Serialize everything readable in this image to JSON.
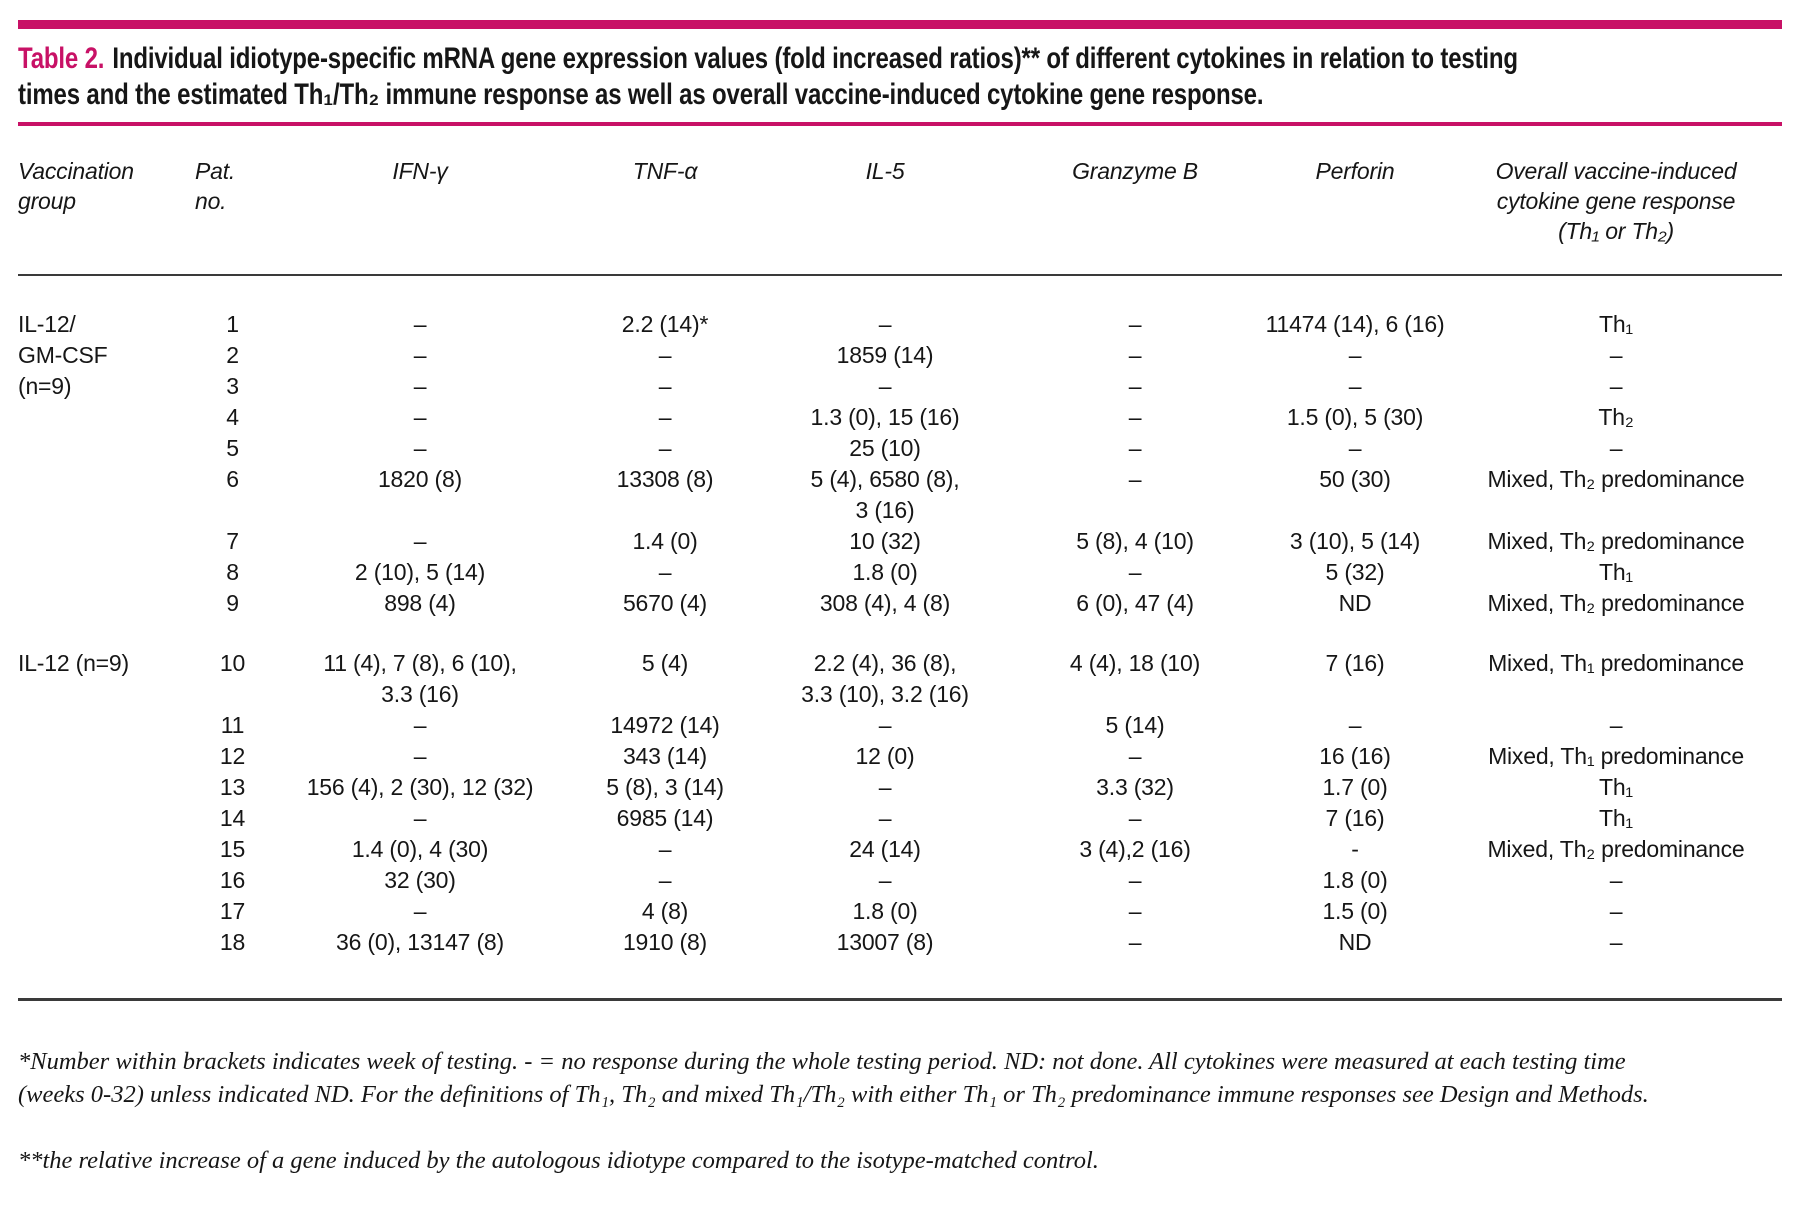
{
  "accent_color": "#c81166",
  "rule_color": "#3a3a3a",
  "caption": {
    "label": "Table 2.",
    "text": "Individual idiotype-specific mRNA gene expression values (fold increased ratios)** of different cytokines in relation to testing\ntimes and the estimated Th₁/Th₂ immune response as well as overall vaccine-induced cytokine gene response."
  },
  "table": {
    "columns": [
      {
        "key": "group",
        "label": "Vaccination\ngroup"
      },
      {
        "key": "pat",
        "label": "Pat. no."
      },
      {
        "key": "ifng",
        "label": "IFN-γ"
      },
      {
        "key": "tnfa",
        "label": "TNF-α"
      },
      {
        "key": "il5",
        "label": "IL-5"
      },
      {
        "key": "granzyme",
        "label": "Granzyme B"
      },
      {
        "key": "perforin",
        "label": "Perforin"
      },
      {
        "key": "overall",
        "label": "Overall vaccine-induced\ncytokine gene response\n(Th₁ or Th₂)"
      }
    ],
    "groups": [
      {
        "label": "IL-12/\nGM-CSF\n(n=9)",
        "rows": [
          {
            "pat": "1",
            "ifng": "–",
            "tnfa": "2.2 (14)*",
            "il5": "–",
            "granzyme": "–",
            "perforin": "11474 (14), 6 (16)",
            "overall": "Th₁"
          },
          {
            "pat": "2",
            "ifng": "–",
            "tnfa": "–",
            "il5": "1859 (14)",
            "granzyme": "–",
            "perforin": "–",
            "overall": "–"
          },
          {
            "pat": "3",
            "ifng": "–",
            "tnfa": "–",
            "il5": "–",
            "granzyme": "–",
            "perforin": "–",
            "overall": "–"
          },
          {
            "pat": "4",
            "ifng": "–",
            "tnfa": "–",
            "il5": "1.3 (0), 15 (16)",
            "granzyme": "–",
            "perforin": "1.5 (0), 5 (30)",
            "overall": "Th₂"
          },
          {
            "pat": "5",
            "ifng": "–",
            "tnfa": "–",
            "il5": "25 (10)",
            "granzyme": "–",
            "perforin": "–",
            "overall": "–"
          },
          {
            "pat": "6",
            "ifng": "1820 (8)",
            "tnfa": "13308 (8)",
            "il5": "5 (4), 6580 (8),\n3 (16)",
            "granzyme": "–",
            "perforin": "50 (30)",
            "overall": "Mixed, Th₂ predominance"
          },
          {
            "pat": "7",
            "ifng": "–",
            "tnfa": "1.4 (0)",
            "il5": "10 (32)",
            "granzyme": "5 (8), 4 (10)",
            "perforin": "3 (10), 5 (14)",
            "overall": "Mixed, Th₂ predominance"
          },
          {
            "pat": "8",
            "ifng": "2 (10), 5 (14)",
            "tnfa": "–",
            "il5": "1.8 (0)",
            "granzyme": "–",
            "perforin": "5 (32)",
            "overall": "Th₁"
          },
          {
            "pat": "9",
            "ifng": "898 (4)",
            "tnfa": "5670 (4)",
            "il5": "308 (4), 4 (8)",
            "granzyme": "6 (0), 47 (4)",
            "perforin": "ND",
            "overall": "Mixed, Th₂ predominance"
          }
        ]
      },
      {
        "label": "IL-12 (n=9)",
        "rows": [
          {
            "pat": "10",
            "ifng": "11 (4), 7 (8), 6 (10),\n3.3 (16)",
            "tnfa": "5 (4)",
            "il5": "2.2 (4), 36 (8),\n3.3 (10), 3.2 (16)",
            "granzyme": "4 (4), 18 (10)",
            "perforin": "7 (16)",
            "overall": "Mixed, Th₁ predominance"
          },
          {
            "pat": "11",
            "ifng": "–",
            "tnfa": "14972 (14)",
            "il5": "–",
            "granzyme": "5 (14)",
            "perforin": "–",
            "overall": "–"
          },
          {
            "pat": "12",
            "ifng": "–",
            "tnfa": "343 (14)",
            "il5": "12 (0)",
            "granzyme": "–",
            "perforin": "16 (16)",
            "overall": "Mixed, Th₁ predominance"
          },
          {
            "pat": "13",
            "ifng": "156 (4), 2 (30), 12 (32)",
            "tnfa": "5 (8), 3 (14)",
            "il5": "–",
            "granzyme": "3.3 (32)",
            "perforin": "1.7 (0)",
            "overall": "Th₁"
          },
          {
            "pat": "14",
            "ifng": "–",
            "tnfa": "6985 (14)",
            "il5": "–",
            "granzyme": "–",
            "perforin": "7 (16)",
            "overall": "Th₁"
          },
          {
            "pat": "15",
            "ifng": "1.4 (0), 4 (30)",
            "tnfa": "–",
            "il5": "24 (14)",
            "granzyme": "3 (4),2 (16)",
            "perforin": "-",
            "overall": "Mixed, Th₂ predominance"
          },
          {
            "pat": "16",
            "ifng": "32 (30)",
            "tnfa": "–",
            "il5": "–",
            "granzyme": "–",
            "perforin": "1.8 (0)",
            "overall": "–"
          },
          {
            "pat": "17",
            "ifng": "–",
            "tnfa": "4 (8)",
            "il5": "1.8 (0)",
            "granzyme": "–",
            "perforin": "1.5 (0)",
            "overall": "–"
          },
          {
            "pat": "18",
            "ifng": "36 (0), 13147 (8)",
            "tnfa": "1910 (8)",
            "il5": "13007 (8)",
            "granzyme": "–",
            "perforin": "ND",
            "overall": "–"
          }
        ]
      }
    ]
  },
  "footnotes": [
    "*Number within brackets indicates week of testing. - = no response during the whole testing period. ND: not done. All cytokines were measured at each testing time\n(weeks 0-32) unless indicated ND. For the definitions of Th₁, Th₂ and mixed Th₁/Th₂ with either Th₁ or Th₂ predominance immune responses see Design and Methods.",
    "**the relative increase of a gene induced by the autologous idiotype compared to the isotype-matched control."
  ]
}
